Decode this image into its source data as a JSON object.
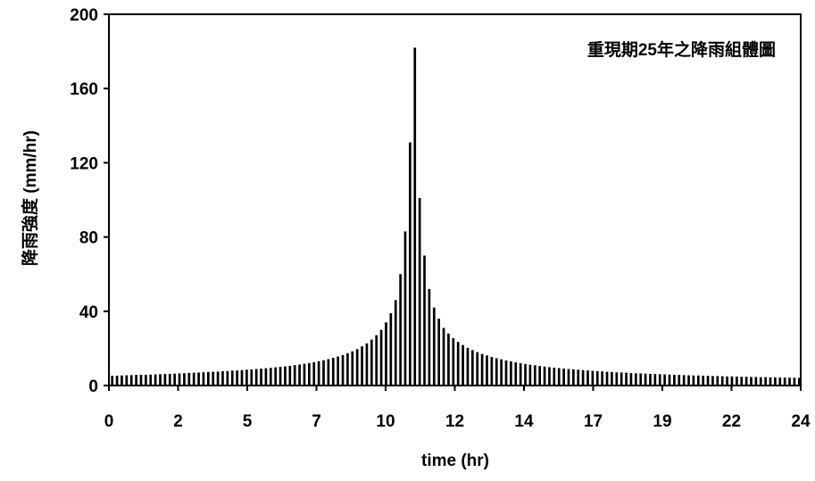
{
  "chart_data": {
    "type": "bar",
    "title": "重現期25年之降雨組體圖",
    "xlabel": "time (hr)",
    "ylabel": "降雨強度 (mm/hr)",
    "ylim": [
      0,
      200
    ],
    "xlim": [
      0,
      24
    ],
    "y_ticks": [
      "0",
      "40",
      "80",
      "120",
      "160",
      "200"
    ],
    "x_ticks": [
      "0",
      "2",
      "5",
      "7",
      "10",
      "12",
      "14",
      "17",
      "19",
      "22",
      "24"
    ],
    "grid": false,
    "legend": "none",
    "bar_color": "#000000",
    "bar_interval_hr": 0.1667,
    "values": [
      5.2,
      5.3,
      5.4,
      5.5,
      5.6,
      5.7,
      5.8,
      5.8,
      5.9,
      6.0,
      6.1,
      6.2,
      6.3,
      6.4,
      6.5,
      6.6,
      6.8,
      6.9,
      7.0,
      7.1,
      7.3,
      7.4,
      7.5,
      7.7,
      7.8,
      8.0,
      8.1,
      8.3,
      8.5,
      8.7,
      8.9,
      9.1,
      9.3,
      9.5,
      9.8,
      10.1,
      10.3,
      10.6,
      11.0,
      11.3,
      11.7,
      12.1,
      12.6,
      13.1,
      13.6,
      14.2,
      14.9,
      15.6,
      16.4,
      17.4,
      18.4,
      19.6,
      21.1,
      22.7,
      24.7,
      27.1,
      30.0,
      34.0,
      39.0,
      46.0,
      60.0,
      83.0,
      131.0,
      182.0,
      101.0,
      70.0,
      52.0,
      42.0,
      36.0,
      31.0,
      28.0,
      25.5,
      23.5,
      21.8,
      20.3,
      19.1,
      18.0,
      17.0,
      16.2,
      15.4,
      14.7,
      14.1,
      13.5,
      13.0,
      12.5,
      12.0,
      11.6,
      11.2,
      10.9,
      10.5,
      10.2,
      9.9,
      9.6,
      9.4,
      9.1,
      8.9,
      8.7,
      8.5,
      8.3,
      8.1,
      7.9,
      7.7,
      7.6,
      7.4,
      7.3,
      7.1,
      7.0,
      6.9,
      6.7,
      6.6,
      6.5,
      6.4,
      6.3,
      6.2,
      6.1,
      6.0,
      5.9,
      5.8,
      5.7,
      5.6,
      5.5,
      5.4,
      5.4,
      5.3,
      5.2,
      5.1,
      5.1,
      5.0,
      4.9,
      4.9,
      4.8,
      4.7,
      4.7,
      4.6,
      4.6,
      4.5,
      4.5,
      4.4,
      4.4,
      4.3,
      4.3,
      4.2,
      4.2,
      4.1
    ]
  }
}
